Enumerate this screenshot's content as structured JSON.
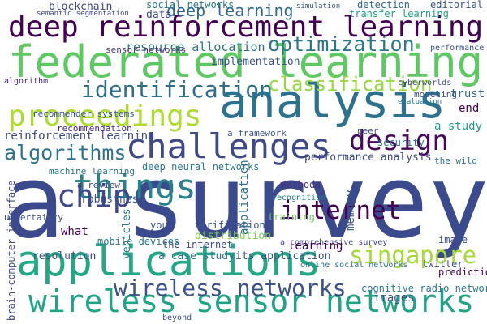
{
  "words": [
    "a survey",
    "federated learning",
    "deep reinforcement learning",
    "applications",
    "wireless sensor networks",
    "analysis",
    "identification",
    "proceedings",
    "challenges",
    "design",
    "things",
    "chip",
    "algorithms",
    "internet",
    "singapore",
    "wireless networks",
    "optimization",
    "classification",
    "deep learning",
    "resource allocation",
    "reinforcement learning",
    "blockchain",
    "social networks",
    "detection",
    "transfer learning",
    "editorial",
    "implementation",
    "sensor networks",
    "machine learning",
    "a review",
    "robustness",
    "deep neural networks",
    "a framework",
    "performance analysis",
    "a study",
    "security",
    "trust",
    "end",
    "recommender systems",
    "recommendation",
    "image",
    "prediction",
    "twitter",
    "cognitive radio networks",
    "images",
    "online social networks",
    "a comprehensive survey",
    "training",
    "verification",
    "methods",
    "recognition",
    "distribution",
    "the internet",
    "a case study",
    "its application",
    "learning",
    "resolution",
    "mobile devices",
    "uncertainty",
    "what",
    "beyond",
    "you",
    "the wild",
    "cyberworlds",
    "modeling",
    "evaluation",
    "peer",
    "algorithm",
    "data",
    "performance",
    "semantic segmentation",
    "simulation",
    "brain-computer interface",
    "application",
    "memory",
    "vehicles"
  ]
}
